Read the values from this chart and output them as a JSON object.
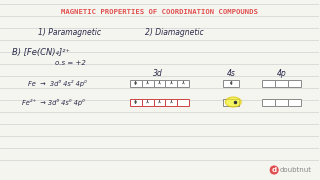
{
  "title": "MAGNETIC PROPERTIES OF COORDINATION COMPOUNDS",
  "title_color": "#e05050",
  "bg_color": "#f5f5f0",
  "line_color": "#d0d0d0",
  "text_color": "#333333",
  "handwriting_color": "#2a2a4a",
  "label1": "1) Paramagnetic",
  "label2": "2) Diamagnetic",
  "example_label": "B) [Fe(CN)₄]²⁺",
  "os_label": "o.s = +2",
  "fe_config": "Fe  →  3d⁶ 4s² 4p⁰",
  "fe2_config": "Fe²⁺  → 3d⁶ 4s⁰ 4p⁰",
  "col_3d": "3d",
  "col_4s": "4s",
  "col_4p": "4p",
  "doubtnut_color": "#e05050",
  "circle_color": "#f0f020",
  "circle_outline": "#e0c000"
}
